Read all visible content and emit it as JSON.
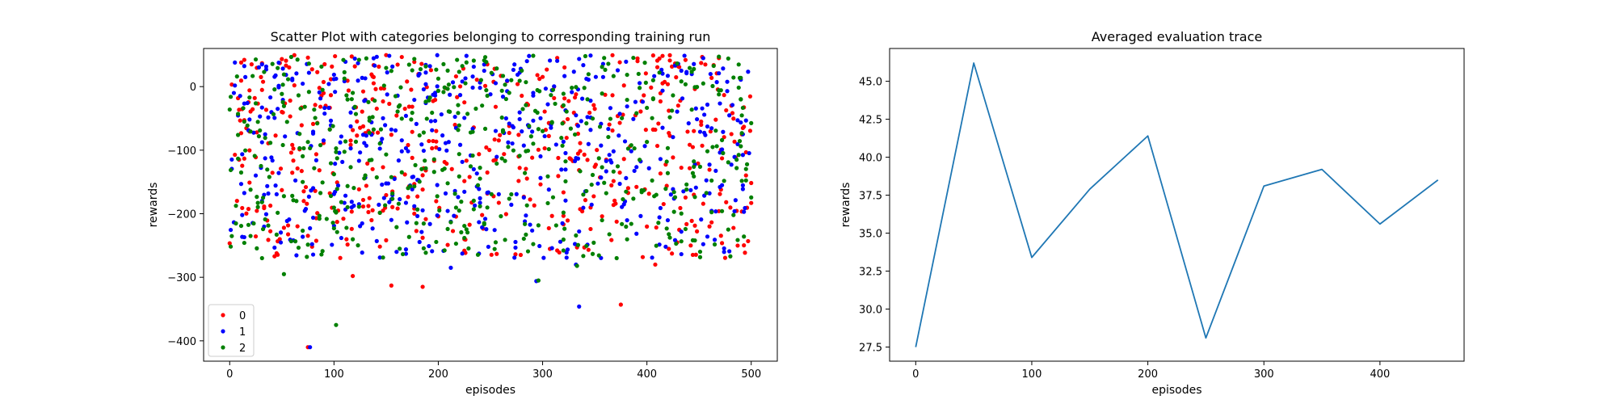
{
  "chart_data": [
    {
      "type": "scatter",
      "title": "Scatter Plot with categories belonging to corresponding training run",
      "xlabel": "episodes",
      "ylabel": "rewards",
      "xlim": [
        -25,
        525
      ],
      "ylim": [
        -432,
        60
      ],
      "xticks": [
        0,
        100,
        200,
        300,
        400,
        500
      ],
      "yticks": [
        0,
        -100,
        -200,
        -300,
        -400
      ],
      "legend_position": "lower-left",
      "grid": false,
      "point_count_per_series": 500,
      "series": [
        {
          "name": "0",
          "color": "#ff0000",
          "notable_points": [
            [
              75,
              -410
            ],
            [
              118,
              -298
            ],
            [
              155,
              -313
            ],
            [
              185,
              -315
            ],
            [
              375,
              -343
            ],
            [
              408,
              -280
            ],
            [
              48,
              -240
            ],
            [
              225,
              -240
            ]
          ]
        },
        {
          "name": "1",
          "color": "#0000ff",
          "notable_points": [
            [
              77,
              -410
            ],
            [
              335,
              -346
            ],
            [
              294,
              -306
            ],
            [
              212,
              -285
            ],
            [
              248,
              -252
            ],
            [
              332,
              -280
            ],
            [
              160,
              -260
            ]
          ]
        },
        {
          "name": "2",
          "color": "#008000",
          "notable_points": [
            [
              102,
              -375
            ],
            [
              52,
              -295
            ],
            [
              296,
              -305
            ],
            [
              333,
              -282
            ],
            [
              255,
              -245
            ],
            [
              20,
              -235
            ]
          ]
        }
      ]
    },
    {
      "type": "line",
      "title": "Averaged evaluation trace",
      "xlabel": "episodes",
      "ylabel": "rewards",
      "xlim": [
        -22.5,
        472.5
      ],
      "ylim": [
        26.57,
        47.16
      ],
      "xticks": [
        0,
        100,
        200,
        300,
        400
      ],
      "yticks": [
        "27.5",
        "30.0",
        "32.5",
        "35.0",
        "37.5",
        "40.0",
        "42.5",
        "45.0"
      ],
      "grid": false,
      "series": [
        {
          "color": "#1f77b4",
          "x": [
            0,
            50,
            100,
            150,
            200,
            250,
            300,
            350,
            400,
            450
          ],
          "y": [
            27.5,
            46.2,
            33.4,
            37.9,
            41.4,
            28.1,
            38.1,
            39.2,
            35.6,
            38.5
          ]
        }
      ]
    }
  ]
}
